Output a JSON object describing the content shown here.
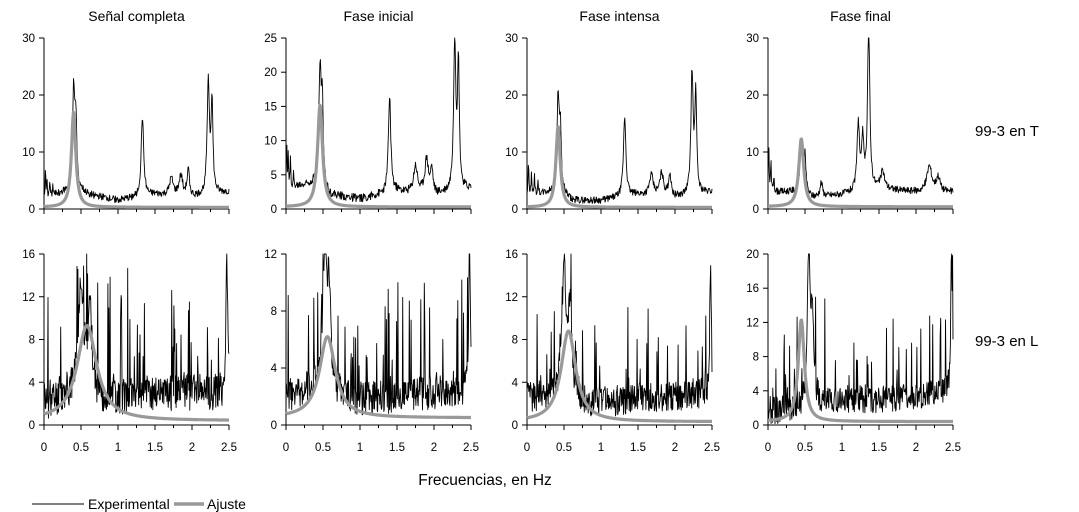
{
  "figure": {
    "xlabel": "Frecuencias, en Hz",
    "row_labels": [
      "99-3 en T",
      "99-3 en L"
    ],
    "legend": [
      {
        "label": "Experimental",
        "color": "#000000"
      },
      {
        "label": "Ajuste",
        "color": "#999999"
      }
    ],
    "colors": {
      "experimental": "#000000",
      "ajuste": "#999999",
      "axis": "#000000"
    }
  },
  "chart_data": [
    {
      "type": "line",
      "title": "Señal completa",
      "row": 0,
      "col": 0,
      "xlim": [
        0,
        2.5
      ],
      "ylim": [
        0,
        30
      ],
      "yticks": [
        0,
        10,
        20,
        30
      ],
      "xticks": [
        0,
        0.5,
        1,
        1.5,
        2,
        2.5
      ],
      "xtick_labels": [],
      "series": [
        {
          "name": "Experimental",
          "kind": "experimental",
          "peaks": [
            [
              0.02,
              4.5,
              0.006
            ],
            [
              0.04,
              3,
              0.005
            ],
            [
              0.08,
              2.5,
              0.005
            ],
            [
              0.12,
              1.5,
              0.006
            ],
            [
              0.4,
              17,
              0.018
            ],
            [
              0.43,
              11,
              0.015
            ],
            [
              1.33,
              14,
              0.02
            ],
            [
              1.72,
              3,
              0.03
            ],
            [
              1.85,
              3.5,
              0.03
            ],
            [
              1.95,
              4.5,
              0.02
            ],
            [
              2.22,
              20,
              0.018
            ],
            [
              2.27,
              16,
              0.015
            ]
          ],
          "base": [
            [
              0,
              2
            ],
            [
              0.45,
              3.5
            ],
            [
              0.6,
              2.5
            ],
            [
              1,
              1.5
            ],
            [
              1.5,
              2.5
            ],
            [
              2.0,
              2
            ],
            [
              2.5,
              3
            ]
          ]
        },
        {
          "name": "Ajuste",
          "kind": "fit",
          "f0": 0.4,
          "peak": 17,
          "gamma": 0.035,
          "floor": 0.3
        }
      ]
    },
    {
      "type": "line",
      "title": "Fase inicial",
      "row": 0,
      "col": 1,
      "xlim": [
        0,
        2.5
      ],
      "ylim": [
        0,
        25
      ],
      "yticks": [
        0,
        5,
        10,
        15,
        20,
        25
      ],
      "xticks": [
        0,
        0.5,
        1,
        1.5,
        2,
        2.5
      ],
      "xtick_labels": [],
      "series": [
        {
          "name": "Experimental",
          "kind": "experimental",
          "peaks": [
            [
              0.01,
              7,
              0.005
            ],
            [
              0.03,
              5,
              0.005
            ],
            [
              0.06,
              4,
              0.006
            ],
            [
              0.1,
              2,
              0.006
            ],
            [
              0.46,
              16,
              0.018
            ],
            [
              0.49,
              11,
              0.015
            ],
            [
              1.4,
              14,
              0.02
            ],
            [
              1.75,
              4,
              0.03
            ],
            [
              1.9,
              5,
              0.03
            ],
            [
              1.97,
              3.5,
              0.02
            ],
            [
              2.28,
              22,
              0.018
            ],
            [
              2.33,
              18,
              0.015
            ]
          ],
          "base": [
            [
              0,
              3
            ],
            [
              0.45,
              4
            ],
            [
              0.6,
              2
            ],
            [
              1,
              1.5
            ],
            [
              1.5,
              2.5
            ],
            [
              2.0,
              2
            ],
            [
              2.5,
              3
            ]
          ]
        },
        {
          "name": "Ajuste",
          "kind": "fit",
          "f0": 0.46,
          "peak": 15.2,
          "gamma": 0.04,
          "floor": 0.3
        }
      ]
    },
    {
      "type": "line",
      "title": "Fase intensa",
      "row": 0,
      "col": 2,
      "xlim": [
        0,
        2.5
      ],
      "ylim": [
        0,
        30
      ],
      "yticks": [
        0,
        10,
        20,
        30
      ],
      "xticks": [
        0,
        0.5,
        1,
        1.5,
        2,
        2.5
      ],
      "xtick_labels": [],
      "series": [
        {
          "name": "Experimental",
          "kind": "experimental",
          "peaks": [
            [
              0.02,
              6,
              0.006
            ],
            [
              0.06,
              4,
              0.005
            ],
            [
              0.1,
              3,
              0.006
            ],
            [
              0.15,
              2,
              0.006
            ],
            [
              0.42,
              16,
              0.018
            ],
            [
              0.45,
              10,
              0.015
            ],
            [
              1.32,
              14,
              0.02
            ],
            [
              1.68,
              3.5,
              0.03
            ],
            [
              1.82,
              4,
              0.03
            ],
            [
              1.93,
              4,
              0.02
            ],
            [
              2.23,
              21,
              0.018
            ],
            [
              2.28,
              17,
              0.015
            ]
          ],
          "base": [
            [
              0,
              2.5
            ],
            [
              0.45,
              3
            ],
            [
              0.6,
              1.5
            ],
            [
              1,
              1.5
            ],
            [
              1.5,
              2.5
            ],
            [
              2.0,
              2
            ],
            [
              2.5,
              3
            ]
          ]
        },
        {
          "name": "Ajuste",
          "kind": "fit",
          "f0": 0.42,
          "peak": 14.5,
          "gamma": 0.035,
          "floor": 0.3
        }
      ]
    },
    {
      "type": "line",
      "title": "Fase final",
      "row": 0,
      "col": 3,
      "xlim": [
        0,
        2.5
      ],
      "ylim": [
        0,
        30
      ],
      "yticks": [
        0,
        10,
        20,
        30
      ],
      "xticks": [
        0,
        0.5,
        1,
        1.5,
        2,
        2.5
      ],
      "xtick_labels": [],
      "series": [
        {
          "name": "Experimental",
          "kind": "experimental",
          "peaks": [
            [
              0.01,
              8,
              0.006
            ],
            [
              0.04,
              6,
              0.005
            ],
            [
              0.08,
              3,
              0.006
            ],
            [
              0.45,
              9,
              0.02
            ],
            [
              0.5,
              6,
              0.015
            ],
            [
              0.72,
              2.5,
              0.02
            ],
            [
              1.22,
              12,
              0.02
            ],
            [
              1.28,
              9,
              0.015
            ],
            [
              1.36,
              29,
              0.018
            ],
            [
              1.55,
              3,
              0.03
            ],
            [
              2.18,
              4.5,
              0.04
            ],
            [
              2.3,
              2.5,
              0.03
            ]
          ],
          "base": [
            [
              0,
              3
            ],
            [
              0.45,
              3
            ],
            [
              0.6,
              2
            ],
            [
              1,
              2.5
            ],
            [
              1.5,
              3.5
            ],
            [
              2.0,
              3
            ],
            [
              2.5,
              3
            ]
          ]
        },
        {
          "name": "Ajuste",
          "kind": "fit",
          "f0": 0.45,
          "peak": 12.3,
          "gamma": 0.04,
          "floor": 0.4
        }
      ]
    },
    {
      "type": "line",
      "title": "",
      "row": 1,
      "col": 0,
      "xlim": [
        0,
        2.5
      ],
      "ylim": [
        0,
        16
      ],
      "yticks": [
        0,
        4,
        8,
        12,
        16
      ],
      "xticks": [
        0,
        0.5,
        1,
        1.5,
        2,
        2.5
      ],
      "xtick_labels": [
        "0",
        "0.5",
        "1",
        "1.5",
        "2",
        "2.5"
      ],
      "series": [
        {
          "name": "Experimental",
          "kind": "noisy",
          "seed": 11,
          "noise": 2.2,
          "spike_prob": 0.12,
          "spike_max": 11,
          "peaks": [
            [
              0.5,
              11,
              0.04
            ],
            [
              0.62,
              8,
              0.03
            ],
            [
              2.47,
              15,
              0.012
            ]
          ],
          "base": [
            [
              0,
              2
            ],
            [
              0.4,
              3
            ],
            [
              0.9,
              2.5
            ],
            [
              1.5,
              3
            ],
            [
              2.5,
              3
            ]
          ]
        },
        {
          "name": "Ajuste",
          "kind": "fit",
          "f0": 0.58,
          "peak": 9.3,
          "gamma": 0.16,
          "floor": 0.4
        }
      ]
    },
    {
      "type": "line",
      "title": "",
      "row": 1,
      "col": 1,
      "xlim": [
        0,
        2.5
      ],
      "ylim": [
        0,
        12
      ],
      "yticks": [
        0,
        4,
        8,
        12
      ],
      "xticks": [
        0,
        0.5,
        1,
        1.5,
        2,
        2.5
      ],
      "xtick_labels": [
        "0",
        "0.5",
        "1",
        "1.5",
        "2",
        "2.5"
      ],
      "series": [
        {
          "name": "Experimental",
          "kind": "noisy",
          "seed": 23,
          "noise": 1.5,
          "spike_prob": 0.12,
          "spike_max": 8,
          "peaks": [
            [
              0.52,
              9,
              0.03
            ],
            [
              0.58,
              7,
              0.03
            ],
            [
              2.48,
              11,
              0.012
            ]
          ],
          "base": [
            [
              0,
              2
            ],
            [
              0.4,
              2.5
            ],
            [
              0.9,
              1.8
            ],
            [
              1.5,
              2
            ],
            [
              2.5,
              2.5
            ]
          ]
        },
        {
          "name": "Ajuste",
          "kind": "fit",
          "f0": 0.56,
          "peak": 6.2,
          "gamma": 0.13,
          "floor": 0.5
        }
      ]
    },
    {
      "type": "line",
      "title": "",
      "row": 1,
      "col": 2,
      "xlim": [
        0,
        2.5
      ],
      "ylim": [
        0,
        16
      ],
      "yticks": [
        0,
        4,
        8,
        12,
        16
      ],
      "xticks": [
        0,
        0.5,
        1,
        1.5,
        2,
        2.5
      ],
      "xtick_labels": [
        "0",
        "0.5",
        "1",
        "1.5",
        "2",
        "2.5"
      ],
      "series": [
        {
          "name": "Experimental",
          "kind": "noisy",
          "seed": 37,
          "noise": 1.8,
          "spike_prob": 0.1,
          "spike_max": 8,
          "peaks": [
            [
              0.5,
              12,
              0.03
            ],
            [
              0.58,
              8,
              0.03
            ],
            [
              2.48,
              12,
              0.012
            ]
          ],
          "base": [
            [
              0,
              2.5
            ],
            [
              0.4,
              3
            ],
            [
              0.9,
              2
            ],
            [
              1.5,
              2.5
            ],
            [
              2.5,
              3
            ]
          ]
        },
        {
          "name": "Ajuste",
          "kind": "fit",
          "f0": 0.56,
          "peak": 8.8,
          "gamma": 0.12,
          "floor": 0.3
        }
      ]
    },
    {
      "type": "line",
      "title": "",
      "row": 1,
      "col": 3,
      "xlim": [
        0,
        2.5
      ],
      "ylim": [
        0,
        20
      ],
      "yticks": [
        0,
        4,
        8,
        12,
        16,
        20
      ],
      "xticks": [
        0,
        0.5,
        1,
        1.5,
        2,
        2.5
      ],
      "xtick_labels": [
        "0",
        "0.5",
        "1",
        "1.5",
        "2",
        "2.5"
      ],
      "series": [
        {
          "name": "Experimental",
          "kind": "noisy",
          "seed": 53,
          "noise": 2.0,
          "spike_prob": 0.12,
          "spike_max": 11,
          "peaks": [
            [
              0.55,
              19,
              0.02
            ],
            [
              0.6,
              11,
              0.02
            ],
            [
              2.48,
              17,
              0.012
            ]
          ],
          "base": [
            [
              0,
              1.5
            ],
            [
              0.4,
              2
            ],
            [
              0.9,
              3
            ],
            [
              1.5,
              3
            ],
            [
              2.5,
              4
            ]
          ]
        },
        {
          "name": "Ajuste",
          "kind": "fit",
          "f0": 0.45,
          "peak": 12.3,
          "gamma": 0.05,
          "floor": 0.4
        }
      ]
    }
  ]
}
